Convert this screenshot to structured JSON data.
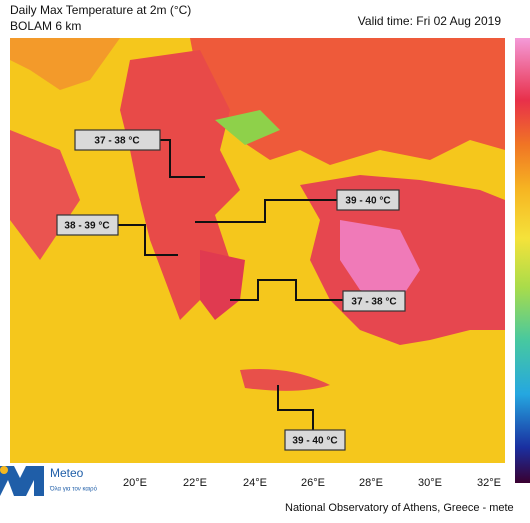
{
  "header": {
    "title": "Daily Max Temperature at 2m (°C)",
    "model": "BOLAM 6 km",
    "valid_time": "Valid time: Fri 02 Aug 2019"
  },
  "callouts": [
    {
      "label": "37 - 38 °C"
    },
    {
      "label": "38 - 39 °C"
    },
    {
      "label": "39 - 40 °C"
    },
    {
      "label": "37 - 38 °C"
    },
    {
      "label": "39 - 40 °C"
    }
  ],
  "longitude_labels": [
    "20°E",
    "22°E",
    "24°E",
    "26°E",
    "28°E",
    "30°E",
    "32°E"
  ],
  "footer": {
    "logo": "Meteo",
    "logo_tagline": "Όλα για τον καιρό",
    "credit": "National Observatory of Athens, Greece - mete"
  }
}
